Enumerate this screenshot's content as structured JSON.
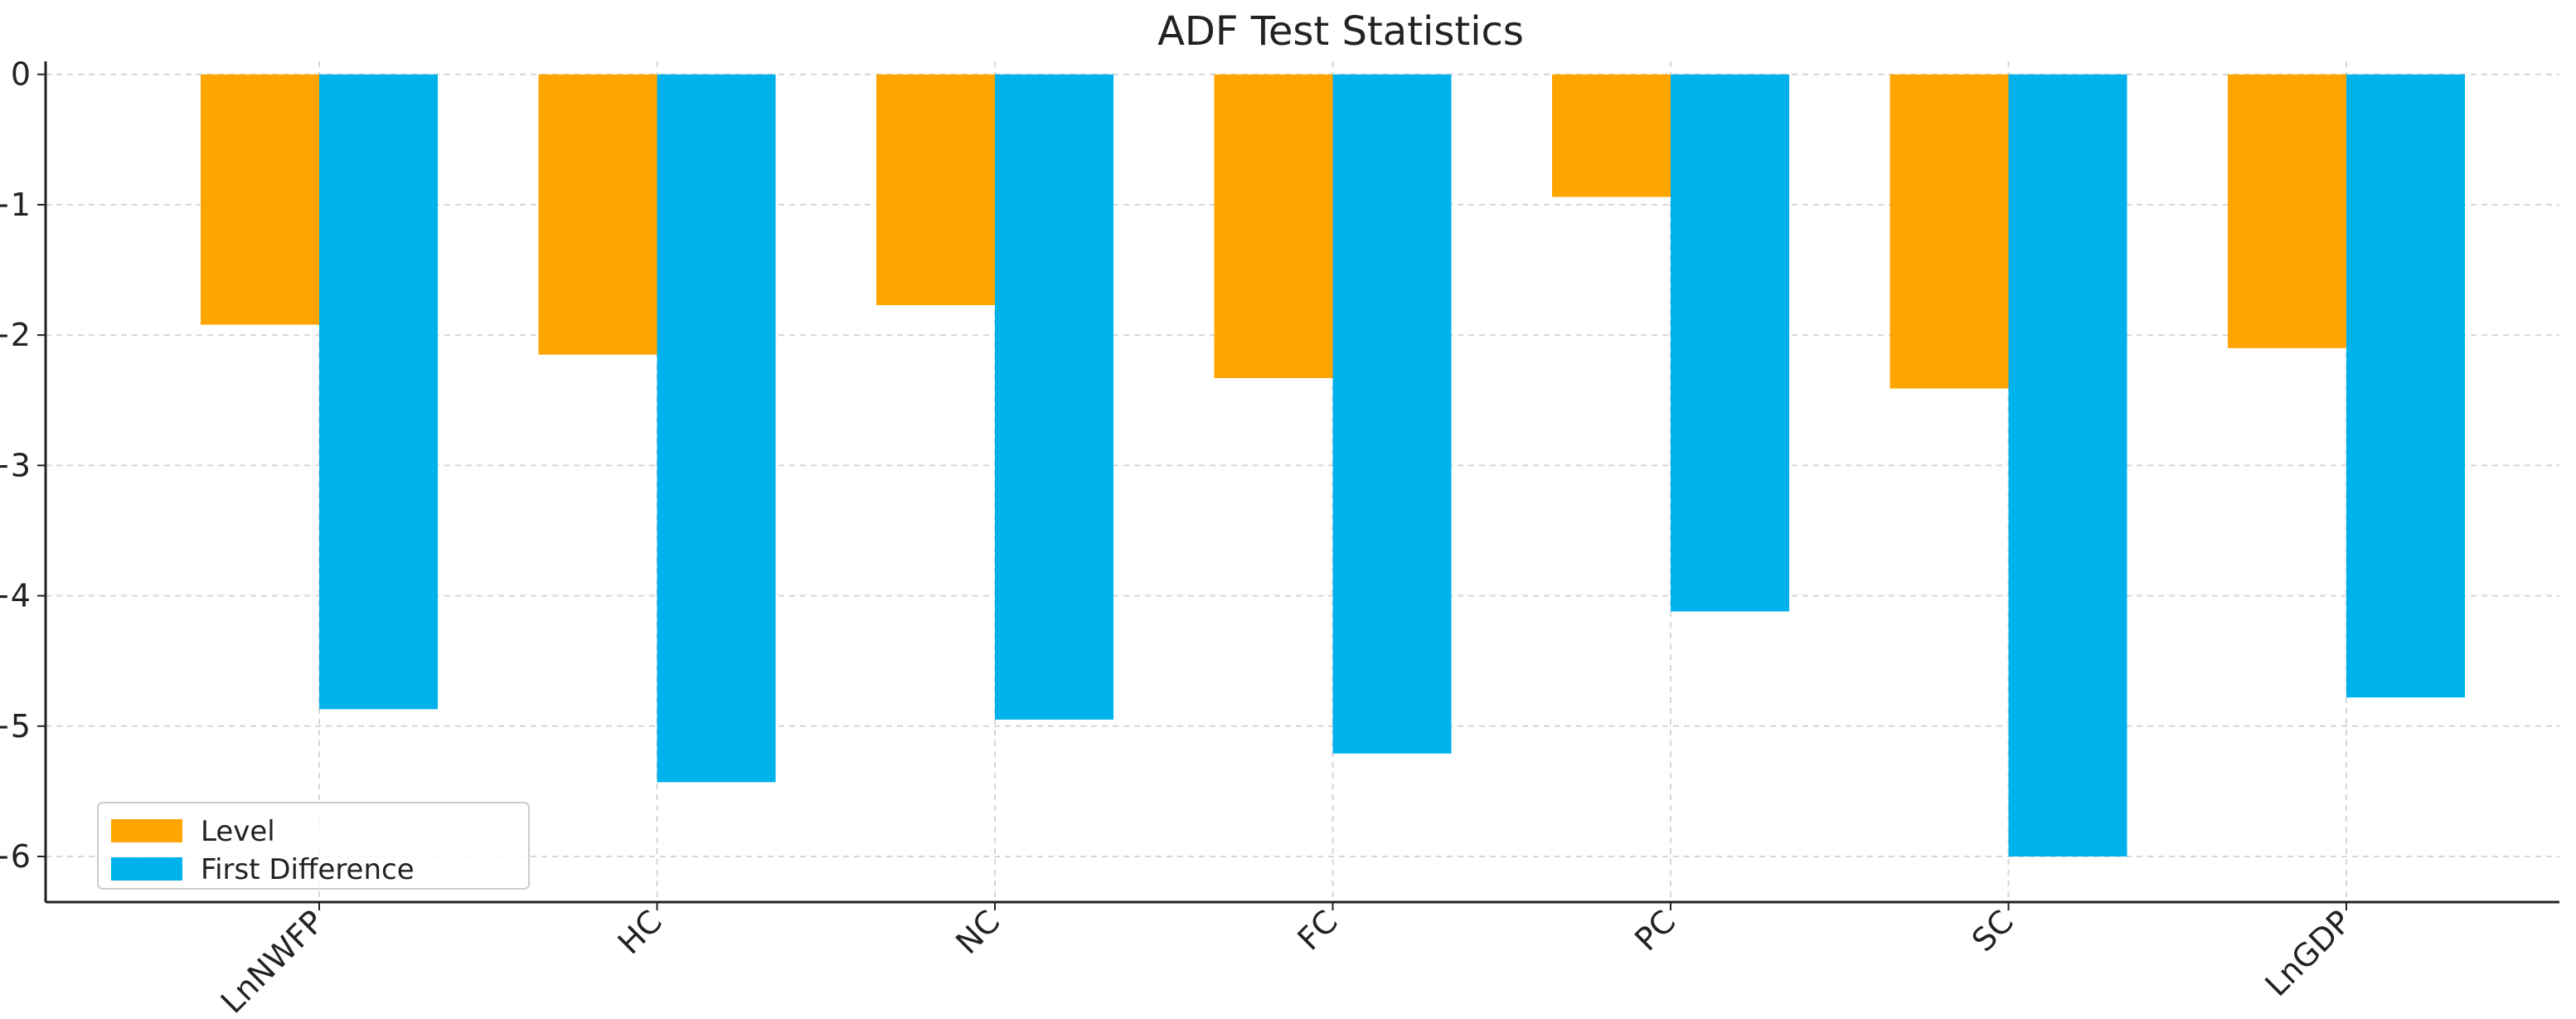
{
  "chart_data": {
    "type": "bar",
    "title": "ADF Test Statistics",
    "xlabel": "",
    "ylabel": "",
    "categories": [
      "LnNWFP",
      "HC",
      "NC",
      "FC",
      "PC",
      "SC",
      "LnGDP"
    ],
    "series": [
      {
        "name": "Level",
        "values": [
          -1.92,
          -2.15,
          -1.77,
          -2.33,
          -0.94,
          -2.41,
          -2.1
        ],
        "color": "#ffa500"
      },
      {
        "name": "First Difference",
        "values": [
          -4.87,
          -5.43,
          -4.95,
          -5.21,
          -4.12,
          -6.0,
          -4.78
        ],
        "color": "#00b2ec"
      }
    ],
    "yticks": [
      0,
      -1,
      -2,
      -3,
      -4,
      -5,
      -6
    ],
    "ytick_labels": [
      "0",
      "−1",
      "−2",
      "−3",
      "−4",
      "−5",
      "−6"
    ],
    "ylim": [
      -6.35,
      0.1
    ],
    "grid": true,
    "legend_position": "lower-left"
  }
}
